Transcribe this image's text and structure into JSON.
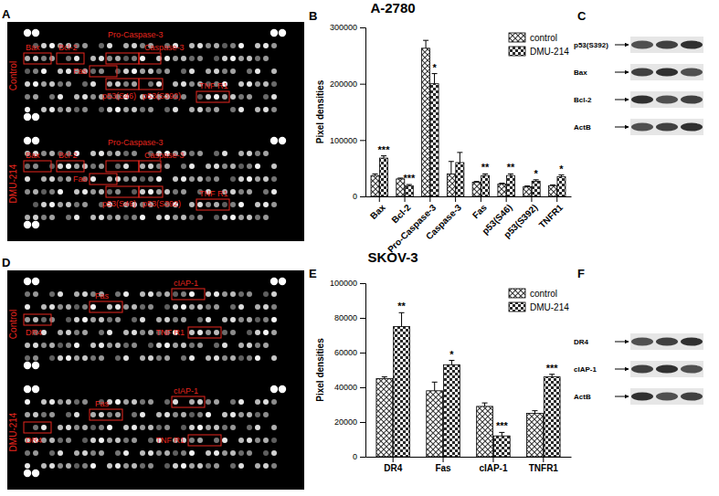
{
  "chart_data": [
    {
      "type": "bar",
      "categories": [
        "Bax",
        "Bcl-2",
        "Pro-Caspase-3",
        "Caspase-3",
        "Fas",
        "p53(S46)",
        "p53(S392)",
        "TNFR1"
      ],
      "series": [
        {
          "name": "control",
          "color": "#3a3a3a",
          "values": [
            37000,
            31000,
            263000,
            40000,
            25000,
            22000,
            17000,
            19000
          ],
          "errors": [
            3000,
            1500,
            14000,
            22000,
            1500,
            1500,
            1500,
            1500
          ]
        },
        {
          "name": "DMU-214",
          "color": "#2a2a2a",
          "values": [
            68000,
            19000,
            200000,
            60000,
            37000,
            37000,
            27000,
            35000
          ],
          "errors": [
            4000,
            2000,
            18000,
            18000,
            3000,
            3000,
            2500,
            3000
          ]
        }
      ],
      "annotations": [
        "***",
        "***",
        "*",
        null,
        "**",
        "**",
        "*",
        "*"
      ],
      "ylabel": "Pixel densities",
      "ylim": [
        0,
        300000
      ],
      "yticks": [
        0,
        100000,
        200000,
        300000
      ],
      "legend": "top-right"
    },
    {
      "type": "bar",
      "categories": [
        "DR4",
        "Fas",
        "cIAP-1",
        "TNFR1"
      ],
      "series": [
        {
          "name": "control",
          "color": "#3a3a3a",
          "values": [
            45000,
            38000,
            29000,
            25000
          ],
          "errors": [
            1000,
            5000,
            2000,
            1500
          ]
        },
        {
          "name": "DMU-214",
          "color": "#2a2a2a",
          "values": [
            75000,
            53000,
            12000,
            46000
          ],
          "errors": [
            8000,
            2500,
            2000,
            1500
          ]
        }
      ],
      "annotations": [
        "**",
        "*",
        "***",
        "***"
      ],
      "ylabel": "Pixel densities",
      "ylim": [
        0,
        100000
      ],
      "yticks": [
        0,
        20000,
        40000,
        60000,
        80000,
        100000
      ],
      "legend": "top-right"
    }
  ],
  "figure": {
    "sections": [
      {
        "title": "A-2780",
        "array": {
          "panel": "A",
          "groups": [
            "Control",
            "DMU-214"
          ],
          "labels": [
            "Bax",
            "Bcl-2",
            "Pro-Caspase-3",
            "Caspase-3",
            "Fas",
            "p53(S46)",
            "p53(S392)",
            "TNF R1"
          ]
        },
        "chart_panel": "B",
        "blot": {
          "panel": "C",
          "rows": [
            "p53(S392)",
            "Bax",
            "Bcl-2",
            "ActB"
          ]
        }
      },
      {
        "title": "SKOV-3",
        "array": {
          "panel": "D",
          "groups": [
            "Control",
            "DMU-214"
          ],
          "labels": [
            "DR4",
            "Fas",
            "cIAP-1",
            "TNF R1"
          ]
        },
        "chart_panel": "E",
        "blot": {
          "panel": "F",
          "rows": [
            "DR4",
            "cIAP-1",
            "ActB"
          ]
        }
      }
    ]
  }
}
